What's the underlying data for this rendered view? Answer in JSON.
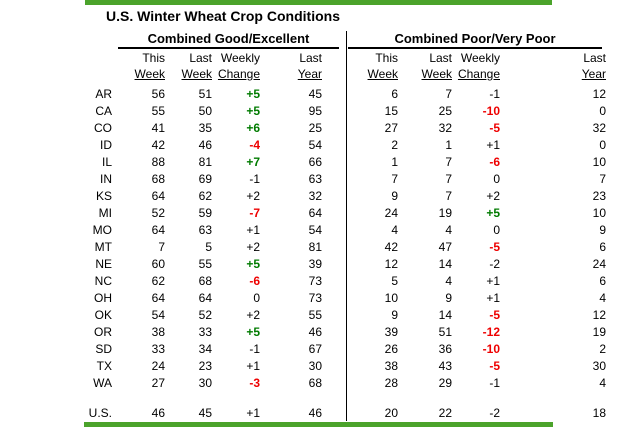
{
  "title": "U.S. Winter Wheat Crop Conditions",
  "column_headers": {
    "line1": [
      "This",
      "Last",
      "Weekly",
      "Last"
    ],
    "line2": [
      "Week",
      "Week",
      "Change",
      "Year"
    ]
  },
  "colors": {
    "accent_green_bar": "#4BA32B",
    "positive_change": "#007B00",
    "negative_change": "#EE0000",
    "neutral_text": "#000000"
  },
  "chart_data": {
    "type": "table",
    "title": "U.S. Winter Wheat Crop Conditions",
    "row_labels": [
      "AR",
      "CA",
      "CO",
      "ID",
      "IL",
      "IN",
      "KS",
      "MI",
      "MO",
      "MT",
      "NE",
      "NC",
      "OH",
      "OK",
      "OR",
      "SD",
      "TX",
      "WA",
      "U.S."
    ],
    "sections": [
      {
        "name": "Combined Good/Excellent",
        "columns": [
          "This Week",
          "Last Week",
          "Weekly Change",
          "Last Year"
        ],
        "rows": [
          [
            56,
            51,
            "+5",
            45
          ],
          [
            55,
            50,
            "+5",
            95
          ],
          [
            41,
            35,
            "+6",
            25
          ],
          [
            42,
            46,
            "-4",
            54
          ],
          [
            88,
            81,
            "+7",
            66
          ],
          [
            68,
            69,
            "-1",
            63
          ],
          [
            64,
            62,
            "+2",
            32
          ],
          [
            52,
            59,
            "-7",
            64
          ],
          [
            64,
            63,
            "+1",
            54
          ],
          [
            7,
            5,
            "+2",
            81
          ],
          [
            60,
            55,
            "+5",
            39
          ],
          [
            62,
            68,
            "-6",
            73
          ],
          [
            64,
            64,
            "0",
            73
          ],
          [
            54,
            52,
            "+2",
            55
          ],
          [
            38,
            33,
            "+5",
            46
          ],
          [
            33,
            34,
            "-1",
            67
          ],
          [
            24,
            23,
            "+1",
            30
          ],
          [
            27,
            30,
            "-3",
            68
          ],
          [
            46,
            45,
            "+1",
            46
          ]
        ],
        "change_colors": [
          "green",
          "green",
          "green",
          "red",
          "green",
          "black",
          "black",
          "red",
          "black",
          "black",
          "green",
          "red",
          "black",
          "black",
          "green",
          "black",
          "black",
          "red",
          "black"
        ]
      },
      {
        "name": "Combined Poor/Very Poor",
        "columns": [
          "This Week",
          "Last Week",
          "Weekly Change",
          "Last Year"
        ],
        "rows": [
          [
            6,
            7,
            "-1",
            12
          ],
          [
            15,
            25,
            "-10",
            0
          ],
          [
            27,
            32,
            "-5",
            32
          ],
          [
            2,
            1,
            "+1",
            0
          ],
          [
            1,
            7,
            "-6",
            10
          ],
          [
            7,
            7,
            "0",
            7
          ],
          [
            9,
            7,
            "+2",
            23
          ],
          [
            24,
            19,
            "+5",
            10
          ],
          [
            4,
            4,
            "0",
            9
          ],
          [
            42,
            47,
            "-5",
            6
          ],
          [
            12,
            14,
            "-2",
            24
          ],
          [
            5,
            4,
            "+1",
            6
          ],
          [
            10,
            9,
            "+1",
            4
          ],
          [
            9,
            14,
            "-5",
            12
          ],
          [
            39,
            51,
            "-12",
            19
          ],
          [
            26,
            36,
            "-10",
            2
          ],
          [
            38,
            43,
            "-5",
            30
          ],
          [
            28,
            29,
            "-1",
            4
          ],
          [
            20,
            22,
            "-2",
            18
          ]
        ],
        "change_colors": [
          "black",
          "red",
          "red",
          "black",
          "red",
          "black",
          "black",
          "green",
          "black",
          "red",
          "black",
          "black",
          "black",
          "red",
          "red",
          "red",
          "red",
          "black",
          "black"
        ]
      }
    ]
  }
}
